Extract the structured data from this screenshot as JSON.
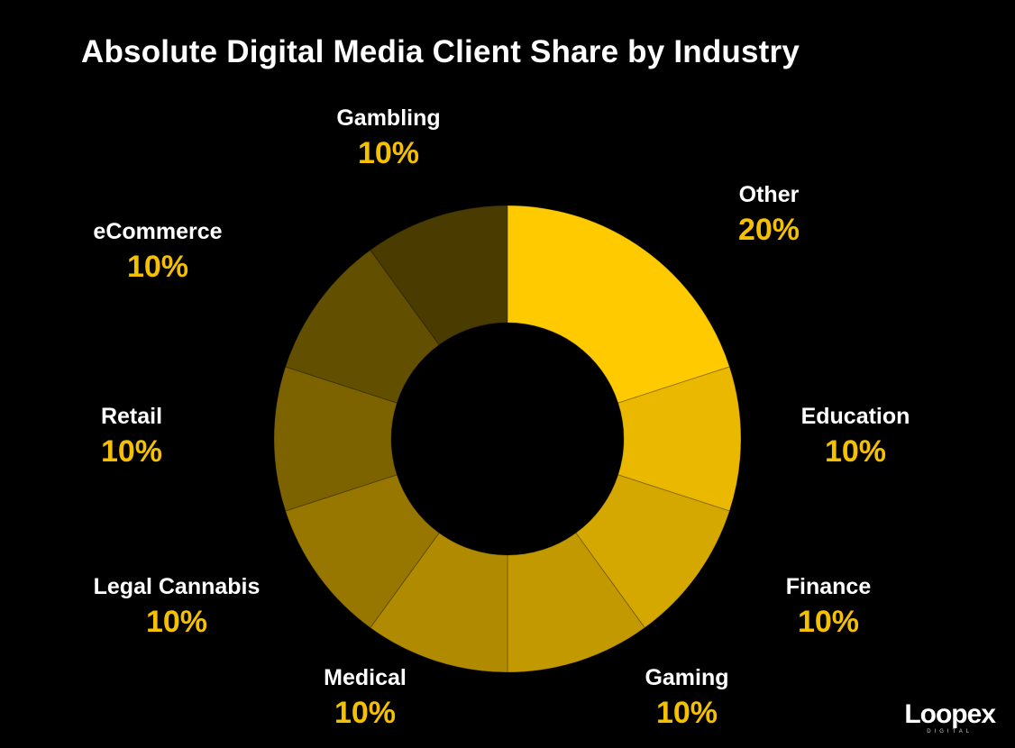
{
  "chart_data": {
    "type": "pie",
    "title": "Absolute Digital Media Client Share by Industry",
    "donut": true,
    "categories": [
      "Other",
      "Education",
      "Finance",
      "Gaming",
      "Medical",
      "Legal Cannabis",
      "Retail",
      "eCommerce",
      "Gambling"
    ],
    "values": [
      20,
      10,
      10,
      10,
      10,
      10,
      10,
      10,
      10
    ],
    "value_labels": [
      "20%",
      "10%",
      "10%",
      "10%",
      "10%",
      "10%",
      "10%",
      "10%",
      "10%"
    ],
    "colors": [
      "#ffcb00",
      "#ebb800",
      "#d5a800",
      "#c39900",
      "#b08a00",
      "#977700",
      "#7d6300",
      "#634f00",
      "#4a3b00"
    ]
  },
  "colors": {
    "background": "#000000",
    "title_text": "#ffffff",
    "value_text": "#f4c000"
  },
  "brand": {
    "name": "Loopex",
    "sub": "DIGITAL"
  }
}
